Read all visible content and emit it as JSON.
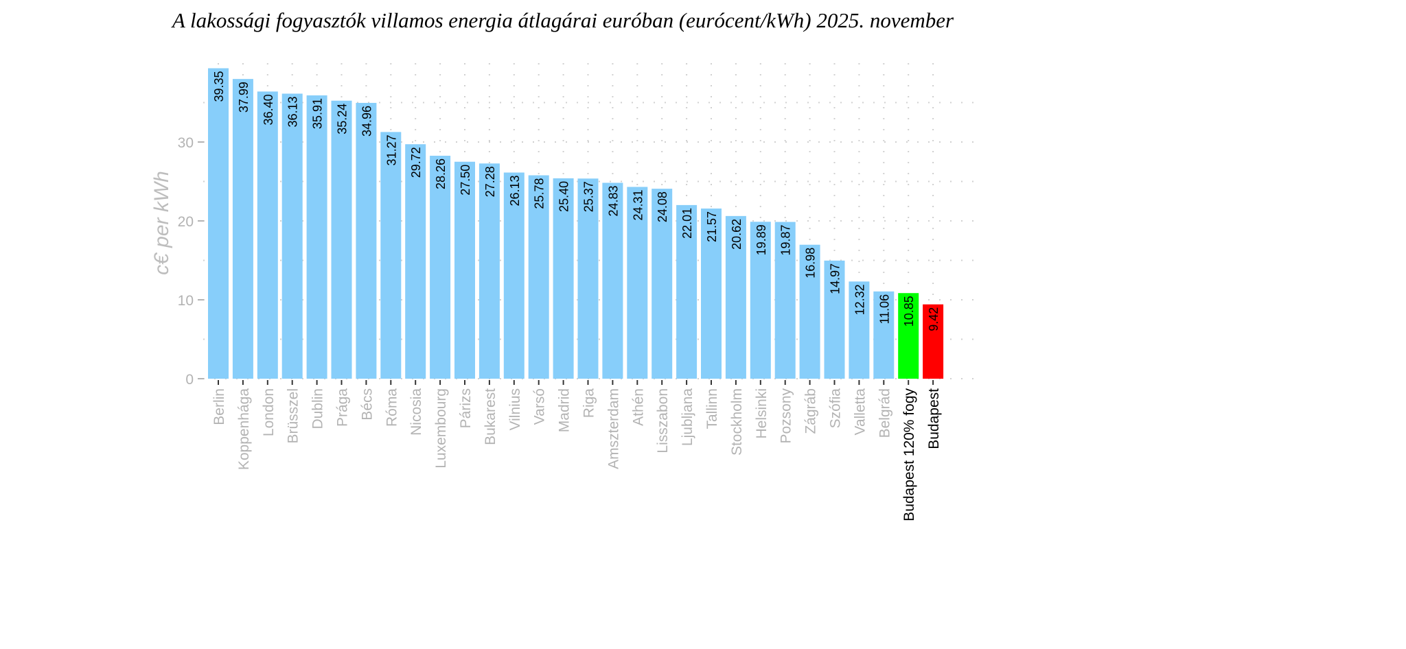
{
  "chart_data": {
    "type": "bar",
    "title": "A lakossági fogyasztók villamos energia átlagárai euróban (eurócent/kWh) 2025. november",
    "xlabel": "",
    "ylabel": "c€ per kWh",
    "ylim": [
      0,
      40
    ],
    "yticks": [
      0,
      10,
      20,
      30
    ],
    "grid": true,
    "categories": [
      "Berlin",
      "Koppenhága",
      "London",
      "Brüsszel",
      "Dublin",
      "Prága",
      "Bécs",
      "Róma",
      "Nicosia",
      "Luxembourg",
      "Párizs",
      "Bukarest",
      "Vilnius",
      "Varsó",
      "Madrid",
      "Riga",
      "Amszterdam",
      "Athén",
      "Lisszabon",
      "Ljubljana",
      "Tallinn",
      "Stockholm",
      "Helsinki",
      "Pozsony",
      "Zágráb",
      "Szófia",
      "Valletta",
      "Belgrád",
      "Budapest 120% fogy",
      "Budapest"
    ],
    "values": [
      39.35,
      37.99,
      36.4,
      36.13,
      35.91,
      35.24,
      34.96,
      31.27,
      29.72,
      28.26,
      27.5,
      27.28,
      26.13,
      25.78,
      25.4,
      25.37,
      24.83,
      24.31,
      24.08,
      22.01,
      21.57,
      20.62,
      19.89,
      19.87,
      16.98,
      14.97,
      12.32,
      11.06,
      10.85,
      9.42
    ],
    "value_labels": [
      "39.35",
      "37.99",
      "36.40",
      "36.13",
      "35.91",
      "35.24",
      "34.96",
      "31.27",
      "29.72",
      "28.26",
      "27.50",
      "27.28",
      "26.13",
      "25.78",
      "25.40",
      "25.37",
      "24.83",
      "24.31",
      "24.08",
      "22.01",
      "21.57",
      "20.62",
      "19.89",
      "19.87",
      "16.98",
      "14.97",
      "12.32",
      "11.06",
      "10.85",
      "9.42"
    ],
    "bar_colors": {
      "default": "#87cefa",
      "Budapest 120% fogy": "#00ff00",
      "Budapest": "#ff0000"
    },
    "highlight_label_color": "#000000",
    "default_label_color": "#b3b3b3"
  }
}
